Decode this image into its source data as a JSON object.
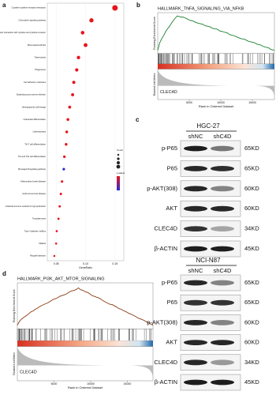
{
  "panel_a": {
    "label": "a",
    "terms": [
      "Cytokine-cytokine receptor interaction",
      "Chemokine signaling pathway",
      "Viral protein interaction with cytokine and cytokine receptor",
      "Rheumatoid arthritis",
      "Tuberculosis",
      "Phagosome",
      "Cell adhesion molecules",
      "Staphylococcus aureus infection",
      "Hematopoietic cell lineage",
      "Osteoclast differentiation",
      "Leishmaniasis",
      "Th17 cell differentiation",
      "Th1 and Th2 cell differentiation",
      "NF-kappa B signaling pathway",
      "Inflammatory bowel disease",
      "Graft-versus-host disease",
      "Intestinal immune network for IgA production",
      "Toxoplasmosis",
      "Type I diabetes mellitus",
      "Malaria",
      "Allograft rejection"
    ],
    "values": [
      0.15,
      0.11,
      0.095,
      0.1,
      0.088,
      0.085,
      0.08,
      0.078,
      0.073,
      0.07,
      0.068,
      0.067,
      0.064,
      0.063,
      0.06,
      0.058,
      0.056,
      0.054,
      0.051,
      0.05,
      0.047
    ],
    "colors": [
      "#e8141c",
      "#e8141c",
      "#e8141c",
      "#e8141c",
      "#e8141c",
      "#e8141c",
      "#e8141c",
      "#e8141c",
      "#e8141c",
      "#e8141c",
      "#e8141c",
      "#e8141c",
      "#e8141c",
      "#2b2bd6",
      "#e8141c",
      "#e8141c",
      "#e8141c",
      "#e8141c",
      "#e8141c",
      "#e8141c",
      "#e8141c"
    ],
    "x_label": "GeneRatio",
    "xlim": [
      0.035,
      0.165
    ],
    "xticks": [
      0.05,
      {
        "value": 0.1,
        "label": "0.10"
      },
      0.15
    ],
    "legend_count_title": "Count",
    "legend_color_title": "p.adjust"
  },
  "panel_b": {
    "label": "b",
    "title": "HALLMARK_TNFA_SIGNALING_VIA_NFKB",
    "y_label_es": "Running Enrichment Score",
    "y_label_rank": "Ranked List Metric",
    "gene": "CLEC4D",
    "x_label": "Rank in Ordered Dataset",
    "xticks": [
      5000,
      10000,
      15000
    ]
  },
  "panel_c": {
    "label": "c",
    "blots": [
      {
        "cell_line": "HGC-27",
        "lanes": [
          "shNC",
          "shC4D"
        ],
        "rows": [
          {
            "protein": "p-P65",
            "size": "65KD"
          },
          {
            "protein": "P65",
            "size": "65KD"
          },
          {
            "protein": "p-AKT(308)",
            "size": "60KD"
          },
          {
            "protein": "AKT",
            "size": "60KD"
          },
          {
            "protein": "CLEC4D",
            "size": "34KD"
          },
          {
            "protein": "β-ACTIN",
            "size": "45KD"
          }
        ]
      },
      {
        "cell_line": "NCI-N87",
        "lanes": [
          "shNC",
          "shC4D"
        ],
        "rows": [
          {
            "protein": "p-P65",
            "size": "65KD"
          },
          {
            "protein": "P65",
            "size": "65KD"
          },
          {
            "protein": "p-AKT(308)",
            "size": "60KD"
          },
          {
            "protein": "AKT",
            "size": "60KD"
          },
          {
            "protein": "CLEC4D",
            "size": "34KD"
          },
          {
            "protein": "β-ACTIN",
            "size": "45KD"
          }
        ]
      }
    ]
  },
  "panel_d": {
    "label": "d",
    "title": "HALLMARK_PI3K_AKT_MTOR_SIGNALING",
    "y_label_es": "Running Enrichment Score",
    "y_label_rank": "Ranked List Metric",
    "gene": "CLEC4D",
    "x_label": "Rank in Ordered Dataset",
    "xticks": [
      5000,
      10000,
      15000
    ]
  }
}
